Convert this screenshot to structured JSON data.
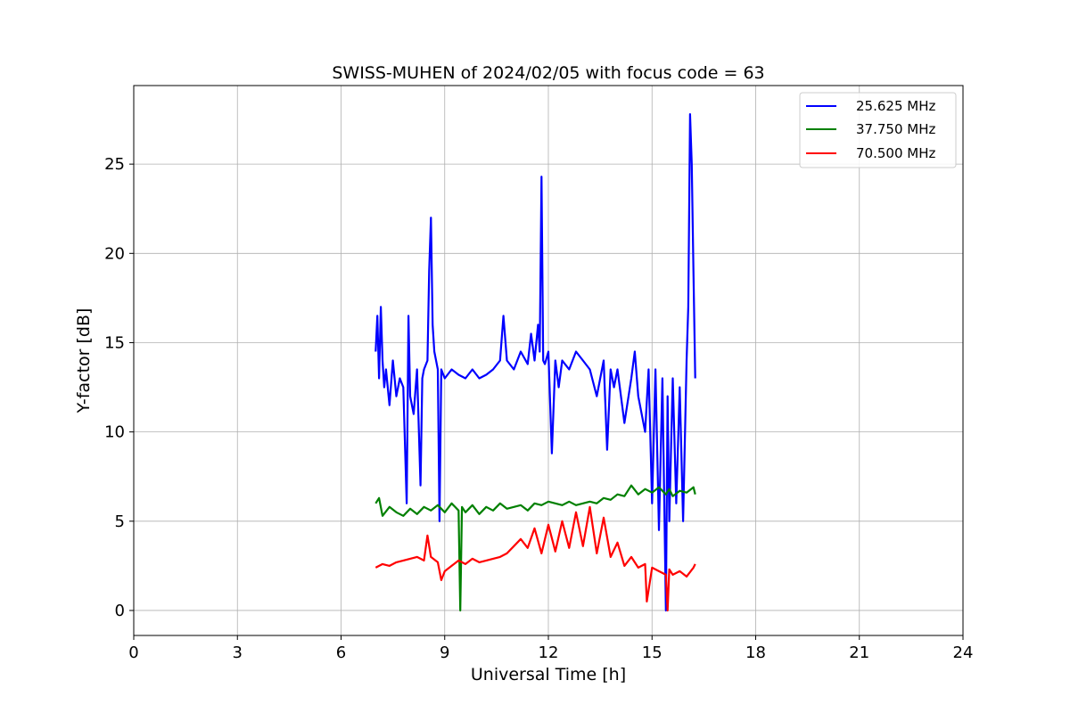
{
  "chart_data": {
    "type": "line",
    "title": "SWISS-MUHEN of 2024/02/05 with focus code = 63",
    "xlabel": "Universal Time [h]",
    "ylabel": "Y-factor [dB]",
    "xlim": [
      0,
      24
    ],
    "ylim": [
      -1.4,
      29.4
    ],
    "xticks": [
      0,
      3,
      6,
      9,
      12,
      15,
      18,
      21,
      24
    ],
    "yticks": [
      0,
      5,
      10,
      15,
      20,
      25
    ],
    "grid": true,
    "legend_position": "top-right",
    "series": [
      {
        "name": "25.625 MHz",
        "color": "#0000ff",
        "x": [
          7.0,
          7.05,
          7.1,
          7.15,
          7.2,
          7.25,
          7.3,
          7.4,
          7.5,
          7.6,
          7.7,
          7.8,
          7.9,
          7.95,
          8.0,
          8.1,
          8.2,
          8.3,
          8.35,
          8.4,
          8.5,
          8.55,
          8.6,
          8.65,
          8.7,
          8.8,
          8.85,
          8.9,
          9.0,
          9.2,
          9.4,
          9.6,
          9.8,
          10.0,
          10.2,
          10.4,
          10.6,
          10.7,
          10.8,
          11.0,
          11.2,
          11.4,
          11.5,
          11.6,
          11.7,
          11.75,
          11.8,
          11.85,
          11.9,
          12.0,
          12.1,
          12.2,
          12.3,
          12.4,
          12.6,
          12.8,
          13.0,
          13.2,
          13.4,
          13.6,
          13.7,
          13.8,
          13.9,
          14.0,
          14.2,
          14.4,
          14.5,
          14.6,
          14.8,
          14.9,
          15.0,
          15.1,
          15.2,
          15.3,
          15.4,
          15.45,
          15.5,
          15.6,
          15.7,
          15.8,
          15.9,
          16.0,
          16.05,
          16.1,
          16.15,
          16.2,
          16.25
        ],
        "y": [
          14.5,
          16.5,
          13.0,
          17.0,
          14.0,
          12.5,
          13.5,
          11.5,
          14.0,
          12.0,
          13.0,
          12.5,
          6.0,
          16.5,
          12.0,
          11.0,
          13.5,
          7.0,
          13.0,
          13.5,
          14.0,
          19.0,
          22.0,
          16.0,
          14.5,
          13.5,
          5.0,
          13.5,
          13.0,
          13.5,
          13.2,
          13.0,
          13.5,
          13.0,
          13.2,
          13.5,
          14.0,
          16.5,
          14.0,
          13.5,
          14.5,
          13.8,
          15.5,
          14.0,
          16.0,
          14.5,
          24.3,
          14.0,
          13.8,
          14.5,
          8.8,
          14.0,
          12.5,
          14.0,
          13.5,
          14.5,
          14.0,
          13.5,
          12.0,
          14.0,
          9.0,
          13.5,
          12.5,
          13.5,
          10.5,
          13.0,
          14.5,
          12.0,
          10.0,
          13.5,
          6.0,
          13.5,
          4.5,
          13.0,
          0.0,
          12.0,
          5.0,
          13.0,
          6.0,
          12.5,
          5.0,
          14.0,
          17.0,
          27.8,
          25.0,
          19.0,
          13.0
        ]
      },
      {
        "name": "37.750 MHz",
        "color": "#008000",
        "x": [
          7.0,
          7.1,
          7.2,
          7.4,
          7.6,
          7.8,
          8.0,
          8.2,
          8.4,
          8.6,
          8.8,
          9.0,
          9.2,
          9.4,
          9.45,
          9.5,
          9.6,
          9.8,
          10.0,
          10.2,
          10.4,
          10.6,
          10.8,
          11.0,
          11.2,
          11.4,
          11.6,
          11.8,
          12.0,
          12.2,
          12.4,
          12.6,
          12.8,
          13.0,
          13.2,
          13.4,
          13.6,
          13.8,
          14.0,
          14.2,
          14.4,
          14.6,
          14.8,
          15.0,
          15.2,
          15.4,
          15.5,
          15.6,
          15.8,
          16.0,
          16.2,
          16.25
        ],
        "y": [
          6.0,
          6.3,
          5.3,
          5.8,
          5.5,
          5.3,
          5.7,
          5.4,
          5.8,
          5.6,
          5.9,
          5.5,
          6.0,
          5.6,
          0.0,
          5.8,
          5.5,
          5.9,
          5.4,
          5.8,
          5.6,
          6.0,
          5.7,
          5.8,
          5.9,
          5.6,
          6.0,
          5.9,
          6.1,
          6.0,
          5.9,
          6.1,
          5.9,
          6.0,
          6.1,
          6.0,
          6.3,
          6.2,
          6.5,
          6.4,
          7.0,
          6.5,
          6.8,
          6.6,
          6.9,
          6.5,
          6.8,
          6.4,
          6.7,
          6.6,
          6.9,
          6.5
        ]
      },
      {
        "name": "70.500 MHz",
        "color": "#ff0000",
        "x": [
          7.0,
          7.2,
          7.4,
          7.6,
          7.8,
          8.0,
          8.2,
          8.4,
          8.5,
          8.6,
          8.8,
          8.9,
          9.0,
          9.2,
          9.4,
          9.6,
          9.8,
          10.0,
          10.2,
          10.4,
          10.6,
          10.8,
          11.0,
          11.2,
          11.4,
          11.6,
          11.8,
          12.0,
          12.2,
          12.4,
          12.6,
          12.8,
          13.0,
          13.2,
          13.4,
          13.6,
          13.8,
          14.0,
          14.2,
          14.4,
          14.6,
          14.8,
          14.85,
          15.0,
          15.2,
          15.4,
          15.45,
          15.5,
          15.6,
          15.8,
          16.0,
          16.2,
          16.25
        ],
        "y": [
          2.4,
          2.6,
          2.5,
          2.7,
          2.8,
          2.9,
          3.0,
          2.8,
          4.2,
          3.0,
          2.7,
          1.7,
          2.2,
          2.5,
          2.8,
          2.6,
          2.9,
          2.7,
          2.8,
          2.9,
          3.0,
          3.2,
          3.6,
          4.0,
          3.5,
          4.6,
          3.2,
          4.8,
          3.3,
          5.0,
          3.5,
          5.5,
          3.6,
          5.8,
          3.2,
          5.2,
          3.0,
          3.8,
          2.5,
          3.0,
          2.4,
          2.6,
          0.5,
          2.4,
          2.2,
          2.0,
          0.0,
          2.3,
          2.0,
          2.2,
          1.9,
          2.4,
          2.6
        ]
      }
    ]
  }
}
